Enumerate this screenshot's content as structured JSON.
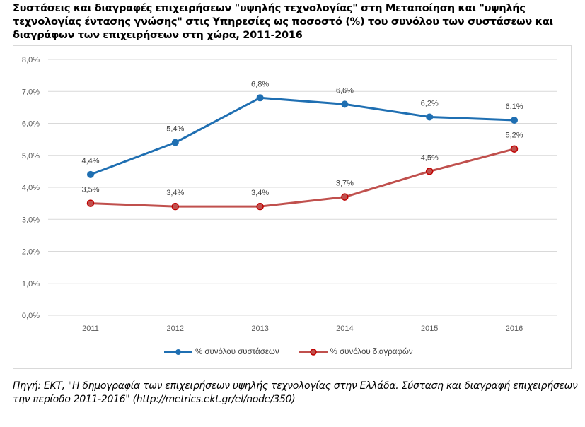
{
  "title": "Συστάσεις και διαγραφές επιχειρήσεων \"υψηλής τεχνολογίας\" στη Μεταποίηση και \"υψηλής τεχνολογίας έντασης γνώσης\" στις Υπηρεσίες ως ποσοστό (%) του συνόλου των συστάσεων και διαγράφων των επιχειρήσεων στη χώρα, 2011-2016",
  "source": "Πηγή: ΕΚΤ, \"Η δημογραφία των επιχειρήσεων υψηλής τεχνολογίας στην Ελλάδα. Σύσταση και διαγραφή επιχειρήσεων την περίοδο 2011-2016\" (http://metrics.ekt.gr/el/node/350)",
  "chart_data": {
    "type": "line",
    "title": "Συστάσεις και διαγραφές επιχειρήσεων \"υψηλής τεχνολογίας\" στη Μεταποίηση και \"υψηλής τεχνολογίας έντασης γνώσης\" στις Υπηρεσίες ως ποσοστό (%) του συνόλου των συστάσεων και διαγράφων των επιχειρήσεων στη χώρα, 2011-2016",
    "xlabel": "",
    "ylabel": "",
    "categories": [
      "2011",
      "2012",
      "2013",
      "2014",
      "2015",
      "2016"
    ],
    "ylim": [
      0,
      8
    ],
    "yticks": [
      0,
      1,
      2,
      3,
      4,
      5,
      6,
      7,
      8
    ],
    "ytick_labels": [
      "0,0%",
      "1,0%",
      "2,0%",
      "3,0%",
      "4,0%",
      "5,0%",
      "6,0%",
      "7,0%",
      "8,0%"
    ],
    "grid": true,
    "legend_position": "bottom",
    "series": [
      {
        "name": "% συνόλου συστάσεων",
        "color": "#1f6fb2",
        "values": [
          4.4,
          5.4,
          6.8,
          6.6,
          6.2,
          6.1
        ],
        "labels": [
          "4,4%",
          "5,4%",
          "6,8%",
          "6,6%",
          "6,2%",
          "6,1%"
        ]
      },
      {
        "name": "% συνόλου διαγραφών",
        "color": "#c0504d",
        "marker_edge": "#c00000",
        "values": [
          3.5,
          3.4,
          3.4,
          3.7,
          4.5,
          5.2
        ],
        "labels": [
          "3,5%",
          "3,4%",
          "3,4%",
          "3,7%",
          "4,5%",
          "5,2%"
        ]
      }
    ]
  }
}
